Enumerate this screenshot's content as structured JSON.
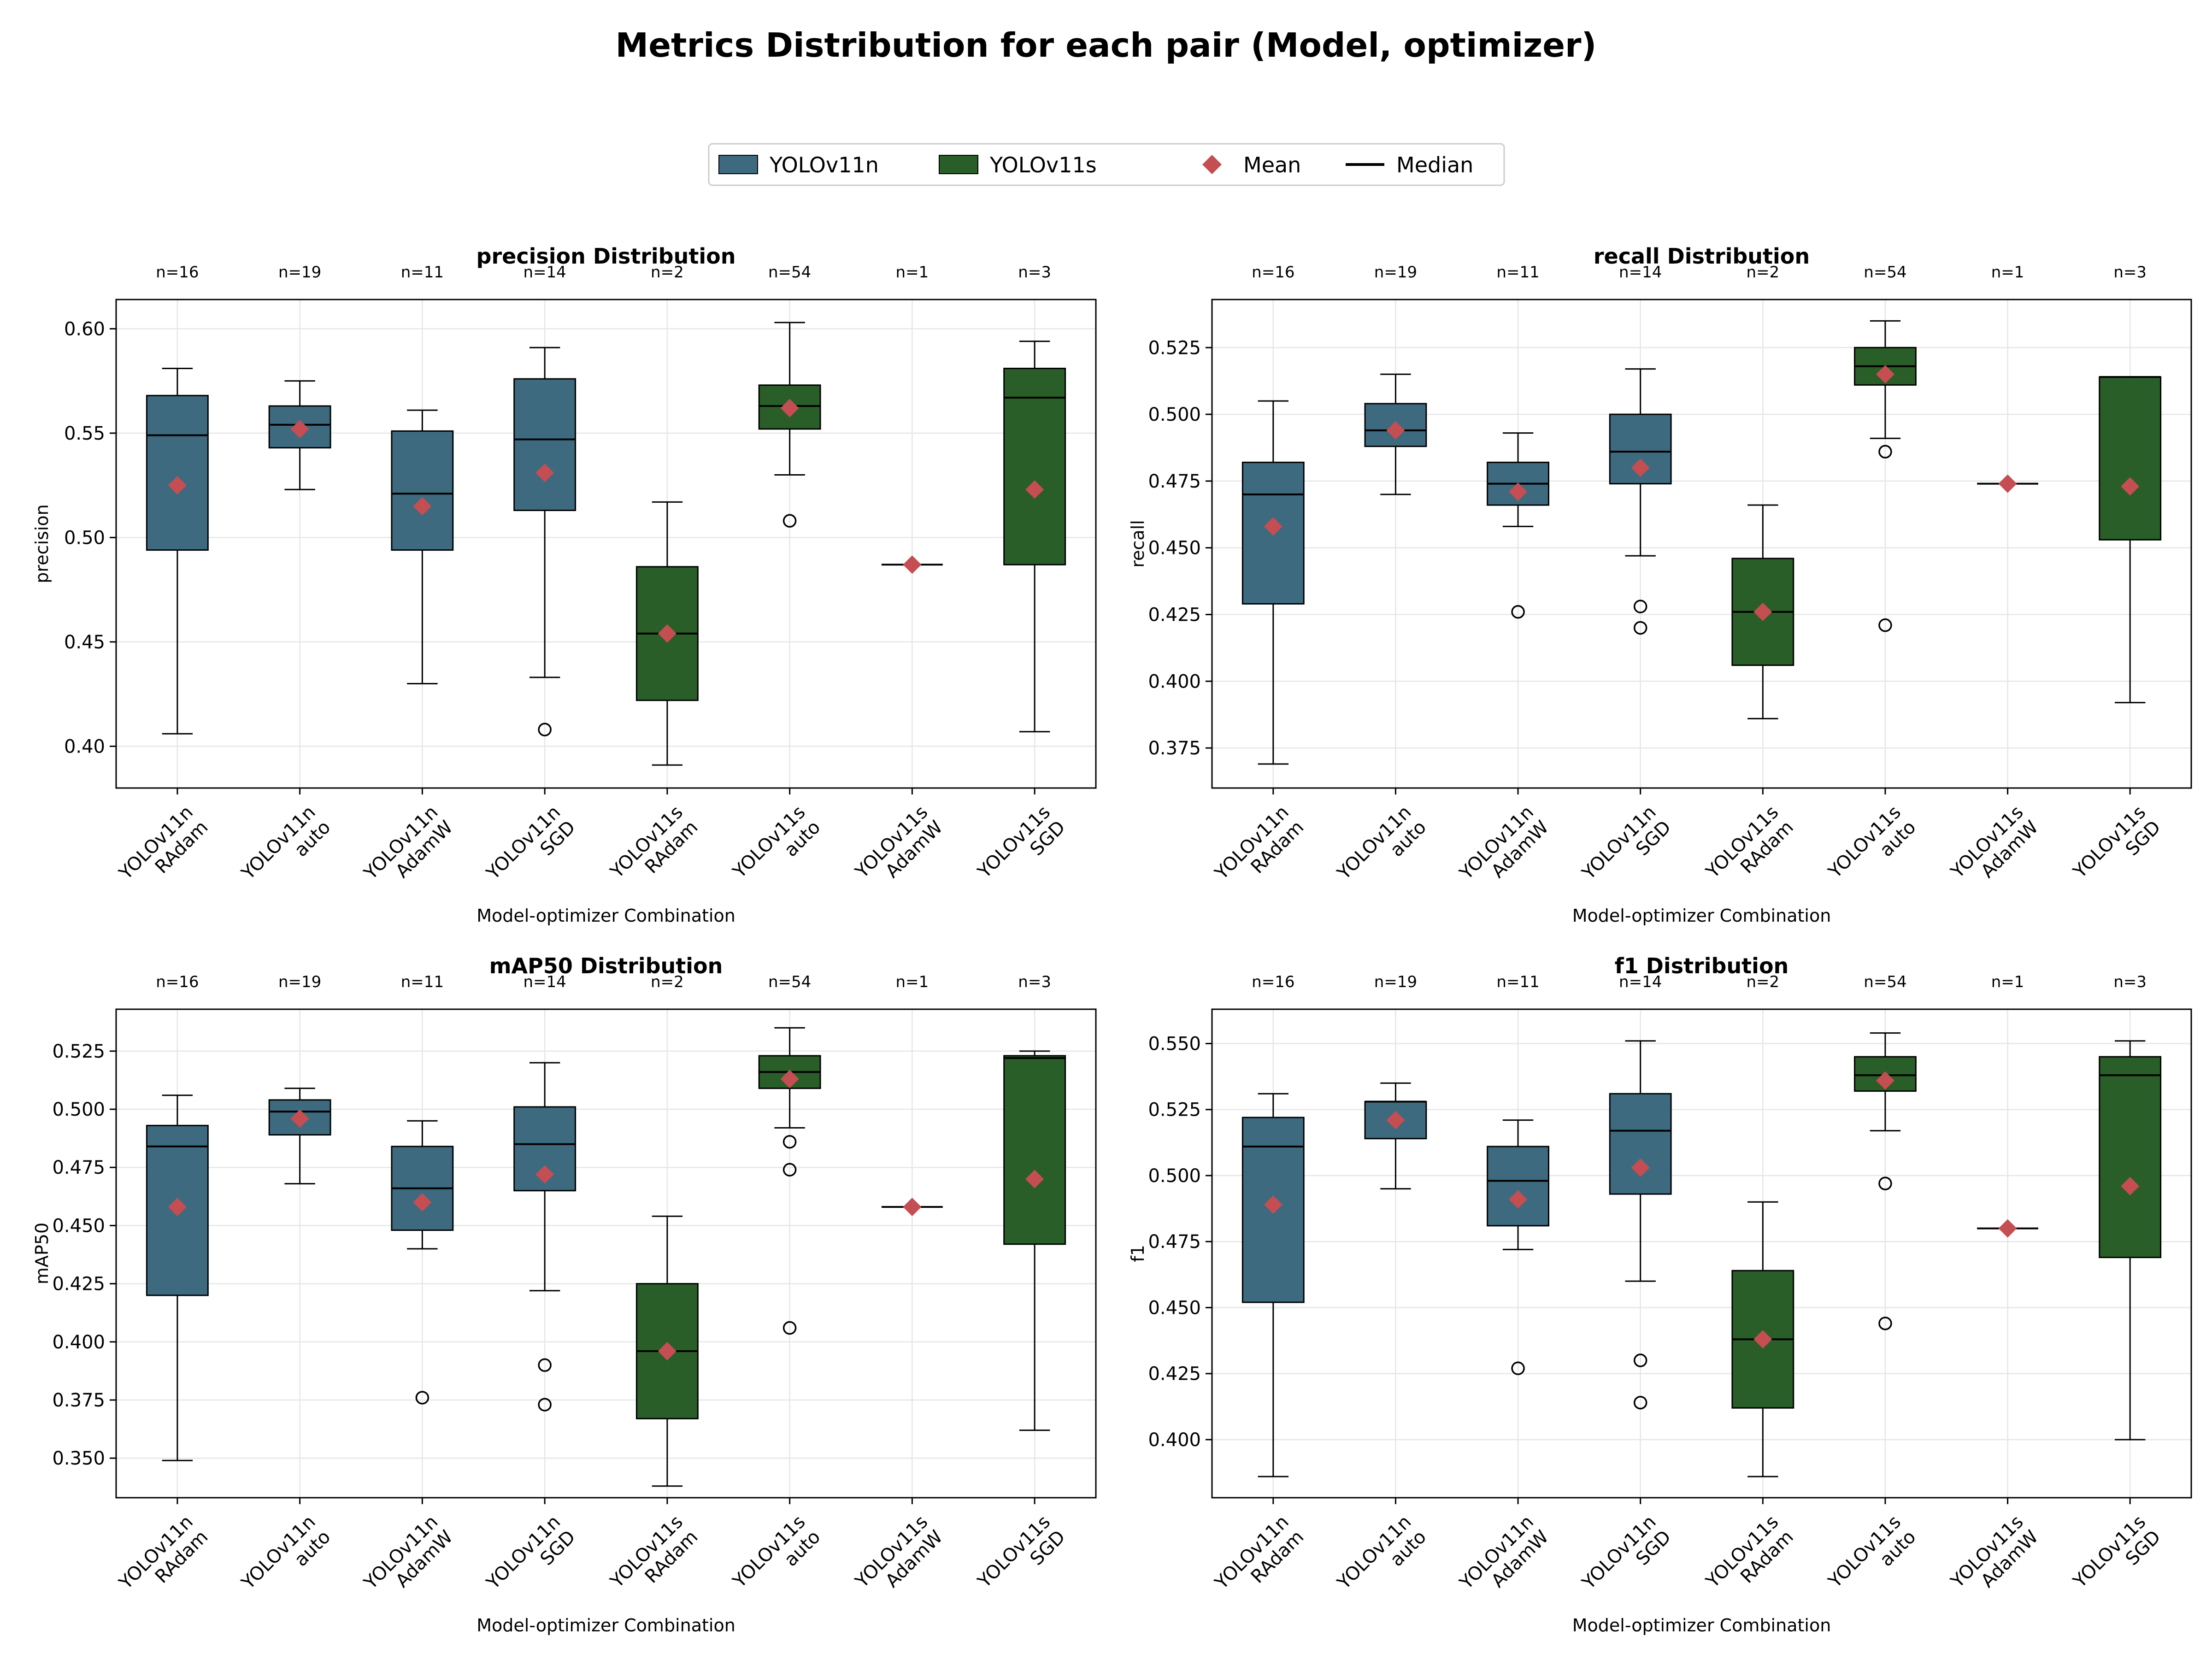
{
  "title": "Metrics Distribution for each pair (Model, optimizer)",
  "legend": {
    "placement": "top-center",
    "items": [
      {
        "label": "YOLOv11n",
        "kind": "patch",
        "color": "#3e6a80"
      },
      {
        "label": "YOLOv11s",
        "kind": "patch",
        "color": "#2a5e28"
      },
      {
        "label": "Mean",
        "kind": "diamond",
        "color": "#c44e52"
      },
      {
        "label": "Median",
        "kind": "line",
        "color": "#000000"
      }
    ]
  },
  "colors": {
    "yolov11n": "#3e6a80",
    "yolov11s": "#2a5e28",
    "mean": "#c44e52",
    "median": "#000000",
    "grid": "#e0e0e0"
  },
  "chart_data": [
    {
      "type": "box",
      "title": "precision Distribution",
      "xlabel": "Model-optimizer Combination",
      "ylabel": "precision",
      "ylim": [
        0.38,
        0.614
      ],
      "yticks": [
        0.4,
        0.45,
        0.5,
        0.55,
        0.6
      ],
      "tick_decimals": 2,
      "grid": true,
      "categories": [
        {
          "model": "YOLOv11n",
          "optimizer": "RAdam",
          "n": "n=16",
          "whislo": 0.406,
          "q1": 0.494,
          "med": 0.549,
          "q3": 0.568,
          "whishi": 0.581,
          "mean": 0.525,
          "fliers": []
        },
        {
          "model": "YOLOv11n",
          "optimizer": "auto",
          "n": "n=19",
          "whislo": 0.523,
          "q1": 0.543,
          "med": 0.554,
          "q3": 0.563,
          "whishi": 0.575,
          "mean": 0.552,
          "fliers": []
        },
        {
          "model": "YOLOv11n",
          "optimizer": "AdamW",
          "n": "n=11",
          "whislo": 0.43,
          "q1": 0.494,
          "med": 0.521,
          "q3": 0.551,
          "whishi": 0.561,
          "mean": 0.515,
          "fliers": []
        },
        {
          "model": "YOLOv11n",
          "optimizer": "SGD",
          "n": "n=14",
          "whislo": 0.433,
          "q1": 0.513,
          "med": 0.547,
          "q3": 0.576,
          "whishi": 0.591,
          "mean": 0.531,
          "fliers": [
            0.408
          ]
        },
        {
          "model": "YOLOv11s",
          "optimizer": "RAdam",
          "n": "n=2",
          "whislo": 0.391,
          "q1": 0.422,
          "med": 0.454,
          "q3": 0.486,
          "whishi": 0.517,
          "mean": 0.454,
          "fliers": []
        },
        {
          "model": "YOLOv11s",
          "optimizer": "auto",
          "n": "n=54",
          "whislo": 0.53,
          "q1": 0.552,
          "med": 0.563,
          "q3": 0.573,
          "whishi": 0.603,
          "mean": 0.562,
          "fliers": [
            0.508
          ]
        },
        {
          "model": "YOLOv11s",
          "optimizer": "AdamW",
          "n": "n=1",
          "whislo": 0.487,
          "q1": 0.487,
          "med": 0.487,
          "q3": 0.487,
          "whishi": 0.487,
          "mean": 0.487,
          "fliers": []
        },
        {
          "model": "YOLOv11s",
          "optimizer": "SGD",
          "n": "n=3",
          "whislo": 0.407,
          "q1": 0.487,
          "med": 0.567,
          "q3": 0.581,
          "whishi": 0.594,
          "mean": 0.523,
          "fliers": []
        }
      ]
    },
    {
      "type": "box",
      "title": "recall Distribution",
      "xlabel": "Model-optimizer Combination",
      "ylabel": "recall",
      "ylim": [
        0.36,
        0.543
      ],
      "yticks": [
        0.375,
        0.4,
        0.425,
        0.45,
        0.475,
        0.5,
        0.525
      ],
      "tick_decimals": 3,
      "grid": true,
      "categories": [
        {
          "model": "YOLOv11n",
          "optimizer": "RAdam",
          "n": "n=16",
          "whislo": 0.369,
          "q1": 0.429,
          "med": 0.47,
          "q3": 0.482,
          "whishi": 0.505,
          "mean": 0.458,
          "fliers": []
        },
        {
          "model": "YOLOv11n",
          "optimizer": "auto",
          "n": "n=19",
          "whislo": 0.47,
          "q1": 0.488,
          "med": 0.494,
          "q3": 0.504,
          "whishi": 0.515,
          "mean": 0.494,
          "fliers": []
        },
        {
          "model": "YOLOv11n",
          "optimizer": "AdamW",
          "n": "n=11",
          "whislo": 0.458,
          "q1": 0.466,
          "med": 0.474,
          "q3": 0.482,
          "whishi": 0.493,
          "mean": 0.471,
          "fliers": [
            0.426
          ]
        },
        {
          "model": "YOLOv11n",
          "optimizer": "SGD",
          "n": "n=14",
          "whislo": 0.447,
          "q1": 0.474,
          "med": 0.486,
          "q3": 0.5,
          "whishi": 0.517,
          "mean": 0.48,
          "fliers": [
            0.428,
            0.42
          ]
        },
        {
          "model": "YOLOv11s",
          "optimizer": "RAdam",
          "n": "n=2",
          "whislo": 0.386,
          "q1": 0.406,
          "med": 0.426,
          "q3": 0.446,
          "whishi": 0.466,
          "mean": 0.426,
          "fliers": []
        },
        {
          "model": "YOLOv11s",
          "optimizer": "auto",
          "n": "n=54",
          "whislo": 0.491,
          "q1": 0.511,
          "med": 0.518,
          "q3": 0.525,
          "whishi": 0.535,
          "mean": 0.515,
          "fliers": [
            0.486,
            0.421
          ]
        },
        {
          "model": "YOLOv11s",
          "optimizer": "AdamW",
          "n": "n=1",
          "whislo": 0.474,
          "q1": 0.474,
          "med": 0.474,
          "q3": 0.474,
          "whishi": 0.474,
          "mean": 0.474,
          "fliers": []
        },
        {
          "model": "YOLOv11s",
          "optimizer": "SGD",
          "n": "n=3",
          "whislo": 0.392,
          "q1": 0.453,
          "med": 0.514,
          "q3": 0.514,
          "whishi": 0.514,
          "mean": 0.473,
          "fliers": []
        }
      ]
    },
    {
      "type": "box",
      "title": "mAP50 Distribution",
      "xlabel": "Model-optimizer Combination",
      "ylabel": "mAP50",
      "ylim": [
        0.333,
        0.543
      ],
      "yticks": [
        0.35,
        0.375,
        0.4,
        0.425,
        0.45,
        0.475,
        0.5,
        0.525
      ],
      "tick_decimals": 3,
      "grid": true,
      "categories": [
        {
          "model": "YOLOv11n",
          "optimizer": "RAdam",
          "n": "n=16",
          "whislo": 0.349,
          "q1": 0.42,
          "med": 0.484,
          "q3": 0.493,
          "whishi": 0.506,
          "mean": 0.458,
          "fliers": []
        },
        {
          "model": "YOLOv11n",
          "optimizer": "auto",
          "n": "n=19",
          "whislo": 0.468,
          "q1": 0.489,
          "med": 0.499,
          "q3": 0.504,
          "whishi": 0.509,
          "mean": 0.496,
          "fliers": []
        },
        {
          "model": "YOLOv11n",
          "optimizer": "AdamW",
          "n": "n=11",
          "whislo": 0.44,
          "q1": 0.448,
          "med": 0.466,
          "q3": 0.484,
          "whishi": 0.495,
          "mean": 0.46,
          "fliers": [
            0.376
          ]
        },
        {
          "model": "YOLOv11n",
          "optimizer": "SGD",
          "n": "n=14",
          "whislo": 0.422,
          "q1": 0.465,
          "med": 0.485,
          "q3": 0.501,
          "whishi": 0.52,
          "mean": 0.472,
          "fliers": [
            0.39,
            0.373
          ]
        },
        {
          "model": "YOLOv11s",
          "optimizer": "RAdam",
          "n": "n=2",
          "whislo": 0.338,
          "q1": 0.367,
          "med": 0.396,
          "q3": 0.425,
          "whishi": 0.454,
          "mean": 0.396,
          "fliers": []
        },
        {
          "model": "YOLOv11s",
          "optimizer": "auto",
          "n": "n=54",
          "whislo": 0.492,
          "q1": 0.509,
          "med": 0.516,
          "q3": 0.523,
          "whishi": 0.535,
          "mean": 0.513,
          "fliers": [
            0.486,
            0.474,
            0.406
          ]
        },
        {
          "model": "YOLOv11s",
          "optimizer": "AdamW",
          "n": "n=1",
          "whislo": 0.458,
          "q1": 0.458,
          "med": 0.458,
          "q3": 0.458,
          "whishi": 0.458,
          "mean": 0.458,
          "fliers": []
        },
        {
          "model": "YOLOv11s",
          "optimizer": "SGD",
          "n": "n=3",
          "whislo": 0.362,
          "q1": 0.442,
          "med": 0.522,
          "q3": 0.523,
          "whishi": 0.525,
          "mean": 0.47,
          "fliers": []
        }
      ]
    },
    {
      "type": "box",
      "title": "f1 Distribution",
      "xlabel": "Model-optimizer Combination",
      "ylabel": "f1",
      "ylim": [
        0.378,
        0.563
      ],
      "yticks": [
        0.4,
        0.425,
        0.45,
        0.475,
        0.5,
        0.525,
        0.55
      ],
      "tick_decimals": 3,
      "grid": true,
      "categories": [
        {
          "model": "YOLOv11n",
          "optimizer": "RAdam",
          "n": "n=16",
          "whislo": 0.386,
          "q1": 0.452,
          "med": 0.511,
          "q3": 0.522,
          "whishi": 0.531,
          "mean": 0.489,
          "fliers": []
        },
        {
          "model": "YOLOv11n",
          "optimizer": "auto",
          "n": "n=19",
          "whislo": 0.495,
          "q1": 0.514,
          "med": 0.528,
          "q3": 0.528,
          "whishi": 0.535,
          "mean": 0.521,
          "fliers": []
        },
        {
          "model": "YOLOv11n",
          "optimizer": "AdamW",
          "n": "n=11",
          "whislo": 0.472,
          "q1": 0.481,
          "med": 0.498,
          "q3": 0.511,
          "whishi": 0.521,
          "mean": 0.491,
          "fliers": [
            0.427
          ]
        },
        {
          "model": "YOLOv11n",
          "optimizer": "SGD",
          "n": "n=14",
          "whislo": 0.46,
          "q1": 0.493,
          "med": 0.517,
          "q3": 0.531,
          "whishi": 0.551,
          "mean": 0.503,
          "fliers": [
            0.43,
            0.414
          ]
        },
        {
          "model": "YOLOv11s",
          "optimizer": "RAdam",
          "n": "n=2",
          "whislo": 0.386,
          "q1": 0.412,
          "med": 0.438,
          "q3": 0.464,
          "whishi": 0.49,
          "mean": 0.438,
          "fliers": []
        },
        {
          "model": "YOLOv11s",
          "optimizer": "auto",
          "n": "n=54",
          "whislo": 0.517,
          "q1": 0.532,
          "med": 0.538,
          "q3": 0.545,
          "whishi": 0.554,
          "mean": 0.536,
          "fliers": [
            0.497,
            0.444
          ]
        },
        {
          "model": "YOLOv11s",
          "optimizer": "AdamW",
          "n": "n=1",
          "whislo": 0.48,
          "q1": 0.48,
          "med": 0.48,
          "q3": 0.48,
          "whishi": 0.48,
          "mean": 0.48,
          "fliers": []
        },
        {
          "model": "YOLOv11s",
          "optimizer": "SGD",
          "n": "n=3",
          "whislo": 0.4,
          "q1": 0.469,
          "med": 0.538,
          "q3": 0.545,
          "whishi": 0.551,
          "mean": 0.496,
          "fliers": []
        }
      ]
    }
  ]
}
